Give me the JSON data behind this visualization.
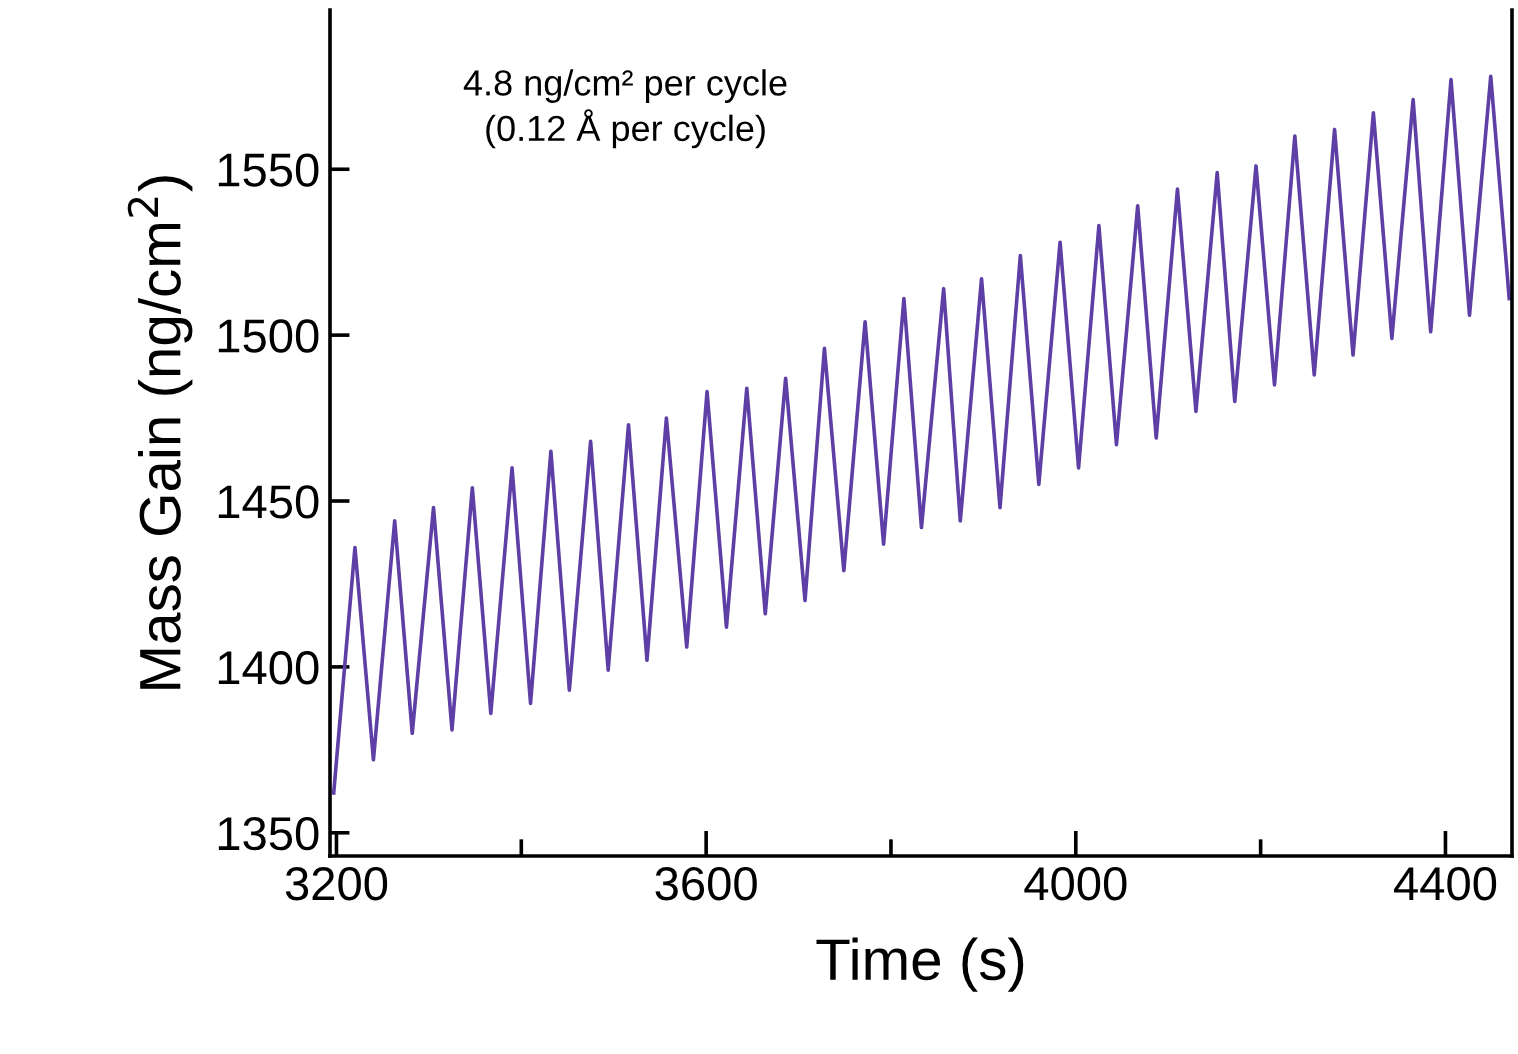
{
  "chart_data": {
    "type": "line",
    "xlabel": "Time (s)",
    "ylabel": "Mass Gain (ng/cm$^{2}$)",
    "annotations": [
      "4.8 ng/cm² per cycle\n(0.12 Å per cycle)"
    ],
    "xlim": [
      3193,
      4472
    ],
    "ylim": [
      1343,
      1598
    ],
    "xticks": [
      3200,
      {
        "value": 3400,
        "label": null
      },
      3600,
      {
        "value": 3800,
        "label": null
      },
      4000,
      {
        "value": 4200,
        "label": null
      },
      4400
    ],
    "yticks": [
      1350,
      1400,
      1450,
      1500,
      1550
    ],
    "grid": false,
    "marker": "none",
    "line_style": "solid",
    "series": [
      {
        "color": "#5e3fa6",
        "x": [
          3197,
          3220,
          3240,
          3263,
          3282,
          3305,
          3325,
          3347,
          3367,
          3390,
          3410,
          3432,
          3452,
          3475,
          3494,
          3516,
          3536,
          3557,
          3579,
          3601,
          3622,
          3644,
          3664,
          3686,
          3707,
          3728,
          3749,
          3772,
          3792,
          3814,
          3833,
          3857,
          3875,
          3898,
          3918,
          3940,
          3960,
          3983,
          4003,
          4025,
          4044,
          4067,
          4087,
          4110,
          4130,
          4153,
          4172,
          4195,
          4215,
          4237,
          4258,
          4280,
          4300,
          4322,
          4342,
          4365,
          4384,
          4406,
          4426,
          4449,
          4469
        ],
        "values": [
          1362,
          1436,
          1372,
          1444,
          1380,
          1448,
          1381,
          1454,
          1386,
          1460,
          1389,
          1465,
          1393,
          1468,
          1399,
          1473,
          1402,
          1475,
          1406,
          1483,
          1412,
          1484,
          1416,
          1487,
          1420,
          1496,
          1429,
          1504,
          1437,
          1511,
          1442,
          1514,
          1444,
          1517,
          1448,
          1524,
          1455,
          1528,
          1460,
          1533,
          1467,
          1539,
          1469,
          1544,
          1477,
          1549,
          1480,
          1551,
          1485,
          1560,
          1488,
          1562,
          1494,
          1567,
          1499,
          1571,
          1501,
          1577,
          1506,
          1578,
          1511
        ]
      }
    ]
  }
}
